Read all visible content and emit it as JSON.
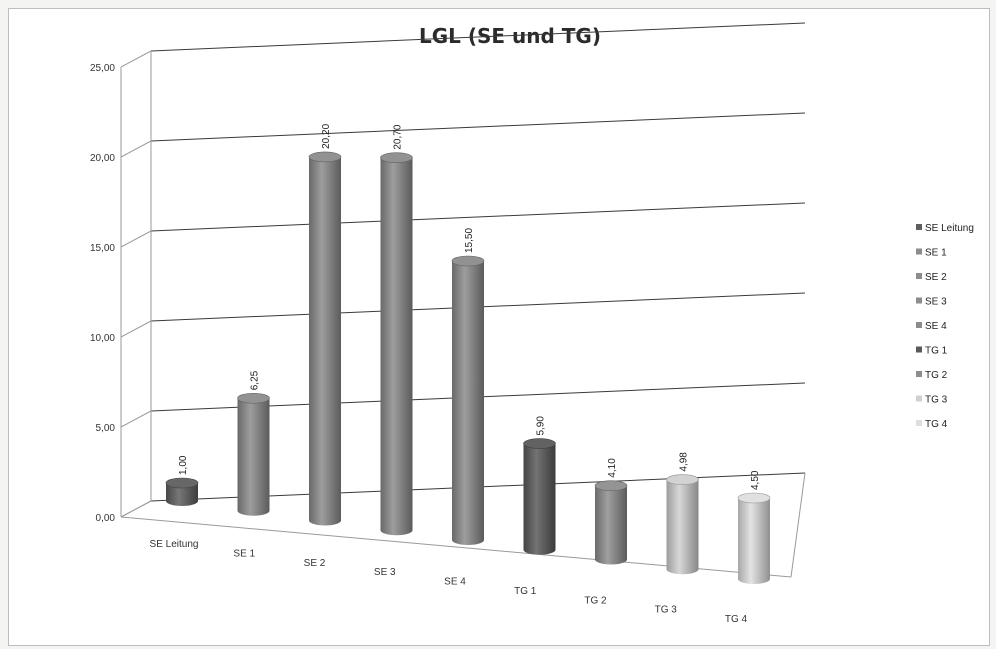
{
  "chart_data": {
    "type": "bar",
    "title": "LGL (SE und TG)",
    "categories": [
      "SE Leitung",
      "SE 1",
      "SE 2",
      "SE 3",
      "SE 4",
      "TG 1",
      "TG 2",
      "TG 3",
      "TG 4"
    ],
    "values": [
      1.0,
      6.25,
      20.2,
      20.7,
      15.5,
      5.9,
      4.1,
      4.98,
      4.5
    ],
    "value_labels": [
      "1,00",
      "6,25",
      "20,20",
      "20,70",
      "15,50",
      "5,90",
      "4,10",
      "4,98",
      "4,50"
    ],
    "y_ticks": [
      "0,00",
      "5,00",
      "10,00",
      "15,00",
      "20,00",
      "25,00"
    ],
    "ylim": [
      0,
      25
    ],
    "legend": [
      "SE Leitung",
      "SE 1",
      "SE 2",
      "SE 3",
      "SE 4",
      "TG 1",
      "TG 2",
      "TG 3",
      "TG 4"
    ],
    "legend_position": "right",
    "grid": true,
    "colors": [
      "#5f5f5f",
      "#8c8c8c",
      "#8c8c8c",
      "#8c8c8c",
      "#8c8c8c",
      "#5a5a5a",
      "#8e8e8e",
      "#d0d0d0",
      "#dedede"
    ]
  }
}
